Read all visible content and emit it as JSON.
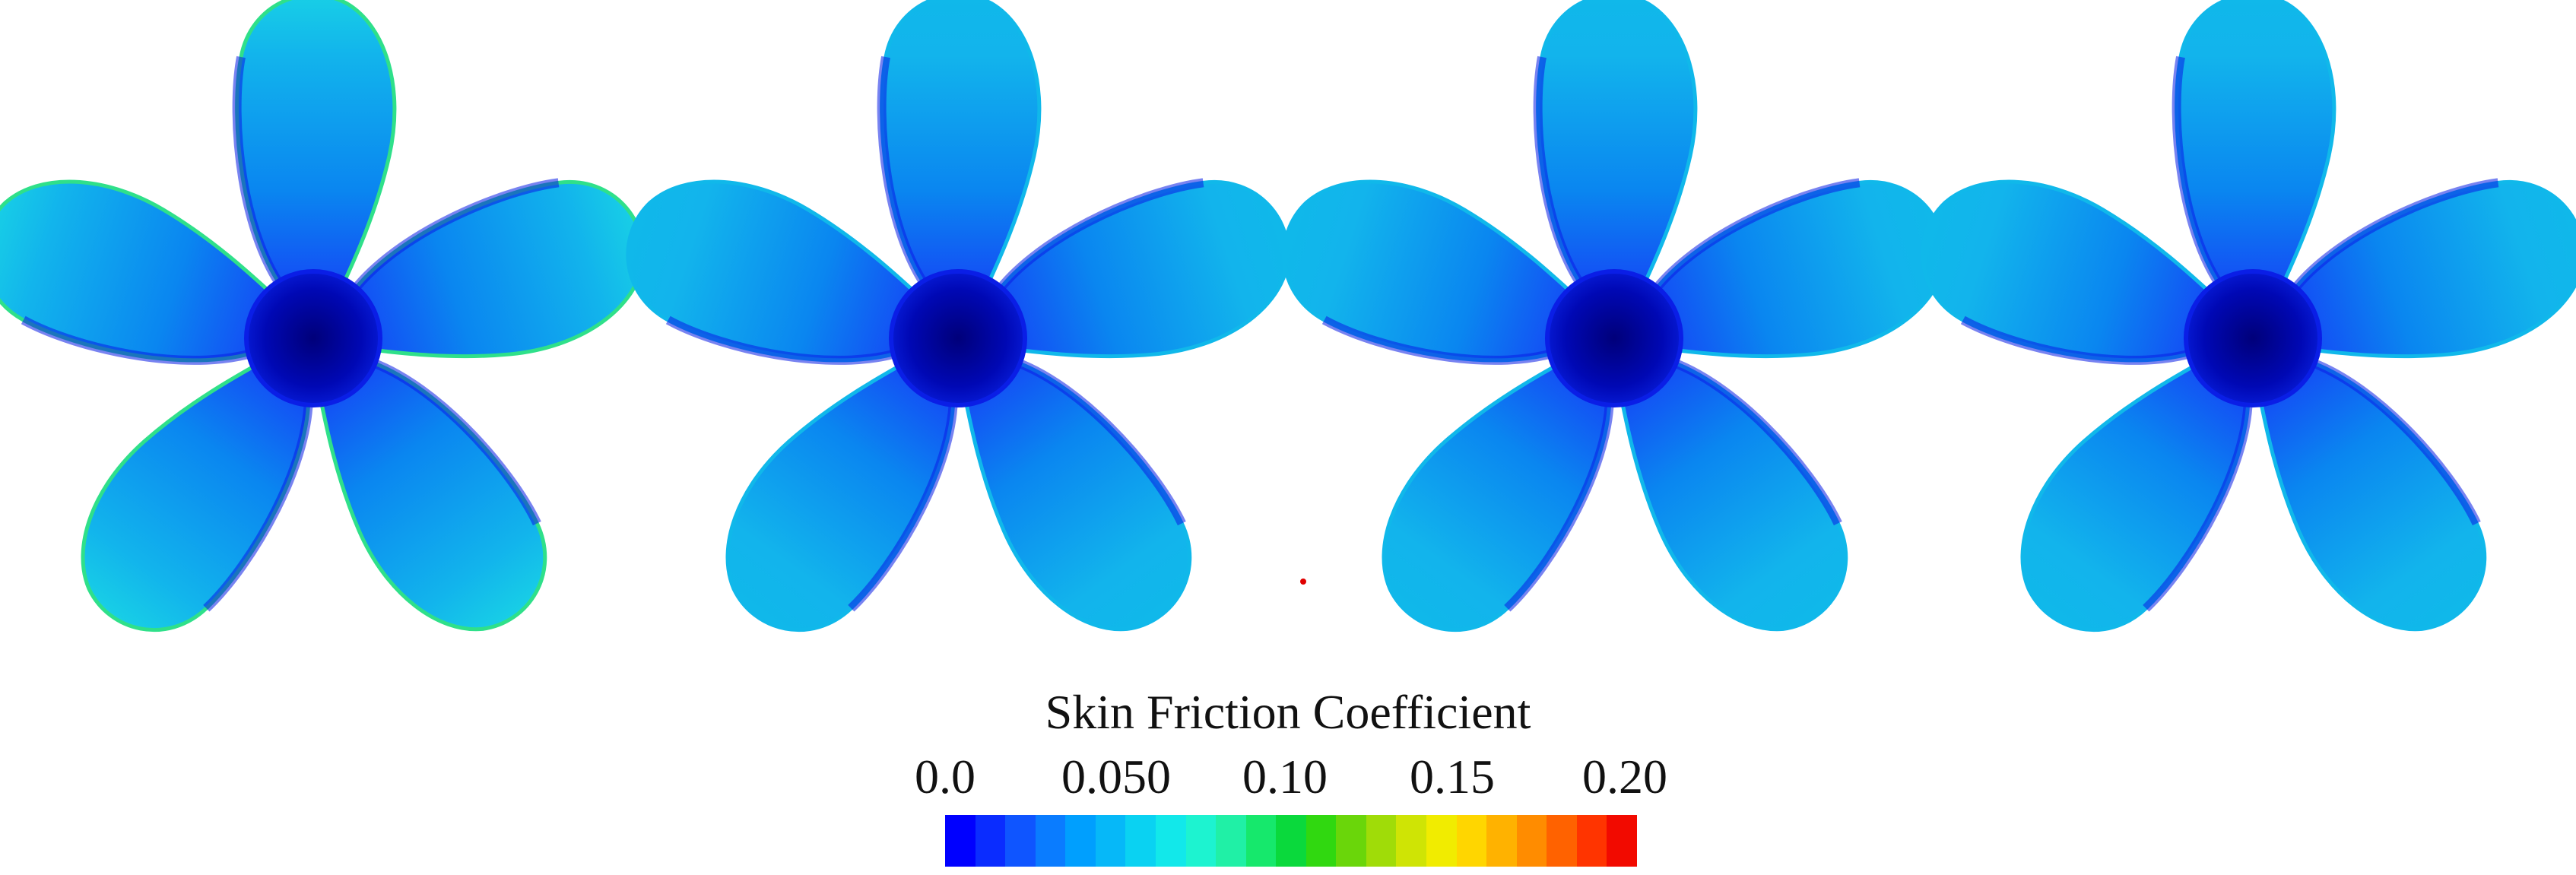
{
  "figure": {
    "propeller_count": 4,
    "blades_per_propeller": 5,
    "propellers": [
      {
        "label": "",
        "tip_color": "#18cfe6",
        "edge_color": "#2fe08a"
      },
      {
        "label": "",
        "tip_color": "#10b8ea",
        "edge_color": "#10b8ea"
      },
      {
        "label": "",
        "tip_color": "#10b8ea",
        "edge_color": "#10b8ea"
      },
      {
        "label": "",
        "tip_color": "#10b8ea",
        "edge_color": "#10b8ea"
      }
    ]
  },
  "legend": {
    "title": "Skin Friction Coefficient",
    "ticks": [
      "0.0",
      "0.050",
      "0.10",
      "0.15",
      "0.20"
    ],
    "range": [
      0.0,
      0.2
    ],
    "colors": [
      "#0000ff",
      "#0a2cff",
      "#0f55ff",
      "#0a7cff",
      "#009ffe",
      "#06b8f8",
      "#0ad2f2",
      "#12e8ea",
      "#1df3d0",
      "#20f0a6",
      "#16e86c",
      "#0ad93c",
      "#30d810",
      "#6ad60a",
      "#a0dc08",
      "#cfe405",
      "#f1ec00",
      "#ffd600",
      "#ffb200",
      "#ff8c00",
      "#ff6200",
      "#ff3400",
      "#f20a00"
    ]
  },
  "colors": {
    "hub_dark": "#0000a0",
    "hub_mid": "#0a1ee6",
    "blade_root": "#1546f5",
    "blade_mid": "#0a86f0",
    "blade_tip": "#12b4ec"
  }
}
